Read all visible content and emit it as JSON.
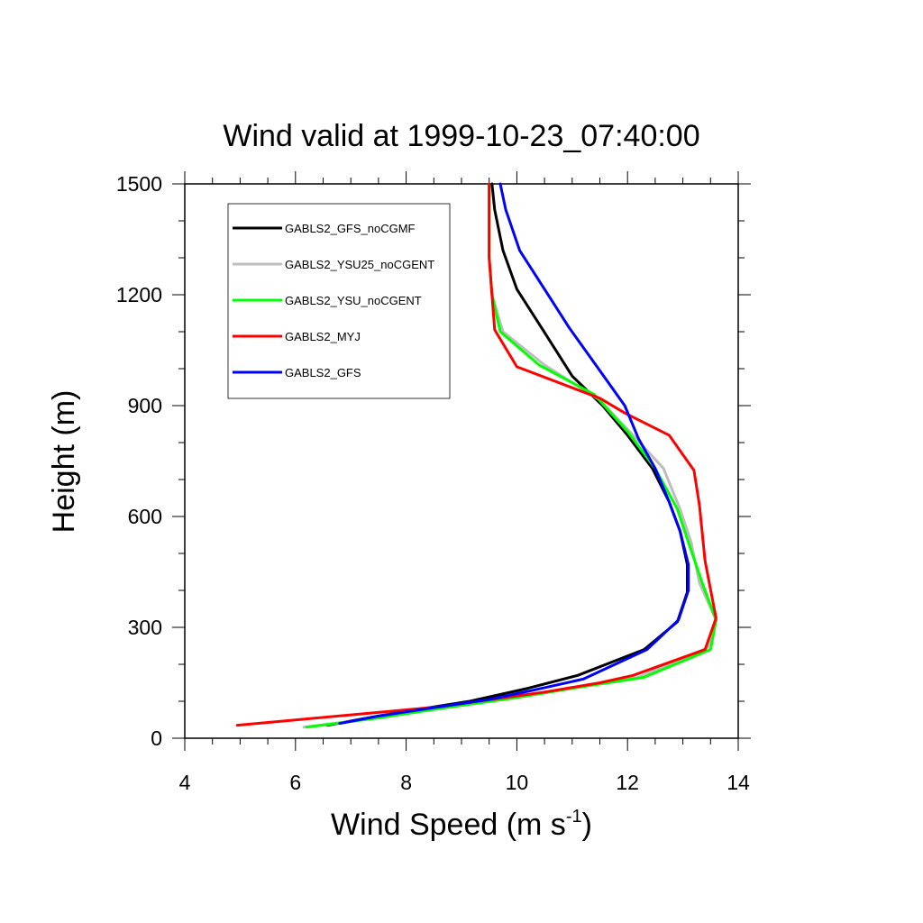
{
  "chart_data": {
    "type": "line",
    "title": "Wind valid at 1999-10-23_07:40:00",
    "xlabel": "Wind Speed (m s",
    "xlabel_superscript": "-1",
    "xlabel_suffix": ")",
    "ylabel": "Height (m)",
    "xlim": [
      4,
      14
    ],
    "ylim": [
      0,
      1500
    ],
    "xticks": [
      4,
      6,
      8,
      10,
      12,
      14
    ],
    "yticks": [
      0,
      300,
      600,
      900,
      1200,
      1500
    ],
    "x_minor_step": 0.5,
    "y_minor_step": 100,
    "grid": false,
    "legend_position": "top-left",
    "series": [
      {
        "name": "GABLS2_GFS_noCGMF",
        "color": "#000000",
        "points": [
          [
            6.58,
            35
          ],
          [
            7.5,
            60
          ],
          [
            8.3,
            80
          ],
          [
            9.15,
            100
          ],
          [
            10.2,
            135
          ],
          [
            11.1,
            170
          ],
          [
            12.3,
            240
          ],
          [
            12.9,
            315
          ],
          [
            13.08,
            395
          ],
          [
            13.08,
            470
          ],
          [
            12.95,
            560
          ],
          [
            12.75,
            640
          ],
          [
            12.45,
            730
          ],
          [
            12.0,
            820
          ],
          [
            11.55,
            900
          ],
          [
            11.0,
            980
          ],
          [
            10.45,
            1110
          ],
          [
            10.0,
            1215
          ],
          [
            9.75,
            1320
          ],
          [
            9.6,
            1430
          ],
          [
            9.55,
            1500
          ]
        ]
      },
      {
        "name": "GABLS2_YSU25_noCGENT",
        "color": "#bdbdbd",
        "points": [
          [
            6.15,
            30
          ],
          [
            7.5,
            55
          ],
          [
            8.6,
            80
          ],
          [
            10.0,
            110
          ],
          [
            11.0,
            135
          ],
          [
            12.2,
            165
          ],
          [
            13.45,
            245
          ],
          [
            13.6,
            320
          ],
          [
            13.3,
            420
          ],
          [
            13.15,
            530
          ],
          [
            12.95,
            620
          ],
          [
            12.65,
            730
          ],
          [
            12.1,
            820
          ],
          [
            11.5,
            915
          ],
          [
            10.5,
            1010
          ],
          [
            9.75,
            1100
          ],
          [
            9.55,
            1200
          ],
          [
            9.5,
            1300
          ],
          [
            9.5,
            1500
          ]
        ]
      },
      {
        "name": "GABLS2_YSU_noCGENT",
        "color": "#00ff00",
        "points": [
          [
            6.2,
            30
          ],
          [
            7.5,
            55
          ],
          [
            8.6,
            80
          ],
          [
            10.0,
            110
          ],
          [
            11.0,
            135
          ],
          [
            12.3,
            165
          ],
          [
            13.5,
            240
          ],
          [
            13.6,
            320
          ],
          [
            13.35,
            420
          ],
          [
            13.1,
            530
          ],
          [
            12.9,
            620
          ],
          [
            12.5,
            730
          ],
          [
            12.0,
            830
          ],
          [
            11.4,
            930
          ],
          [
            10.4,
            1010
          ],
          [
            9.7,
            1100
          ],
          [
            9.55,
            1200
          ],
          [
            9.5,
            1300
          ],
          [
            9.5,
            1500
          ]
        ]
      },
      {
        "name": "GABLS2_MYJ",
        "color": "#ff0000",
        "points": [
          [
            4.95,
            35
          ],
          [
            8.6,
            85
          ],
          [
            9.3,
            100
          ],
          [
            10.5,
            125
          ],
          [
            11.5,
            150
          ],
          [
            12.1,
            170
          ],
          [
            13.4,
            240
          ],
          [
            13.6,
            325
          ],
          [
            13.4,
            480
          ],
          [
            13.3,
            630
          ],
          [
            13.2,
            725
          ],
          [
            12.75,
            820
          ],
          [
            11.95,
            880
          ],
          [
            11.5,
            920
          ],
          [
            10.0,
            1005
          ],
          [
            9.6,
            1105
          ],
          [
            9.55,
            1200
          ],
          [
            9.5,
            1300
          ],
          [
            9.5,
            1500
          ]
        ]
      },
      {
        "name": "GABLS2_GFS",
        "color": "#0000ff",
        "points": [
          [
            6.8,
            40
          ],
          [
            7.5,
            60
          ],
          [
            8.6,
            85
          ],
          [
            9.5,
            105
          ],
          [
            10.3,
            130
          ],
          [
            11.2,
            160
          ],
          [
            12.35,
            240
          ],
          [
            12.92,
            320
          ],
          [
            13.1,
            400
          ],
          [
            13.1,
            470
          ],
          [
            12.95,
            560
          ],
          [
            12.75,
            640
          ],
          [
            12.5,
            730
          ],
          [
            12.2,
            810
          ],
          [
            11.95,
            900
          ],
          [
            11.45,
            1005
          ],
          [
            10.95,
            1110
          ],
          [
            10.5,
            1215
          ],
          [
            10.05,
            1320
          ],
          [
            9.8,
            1430
          ],
          [
            9.7,
            1500
          ]
        ]
      }
    ]
  }
}
